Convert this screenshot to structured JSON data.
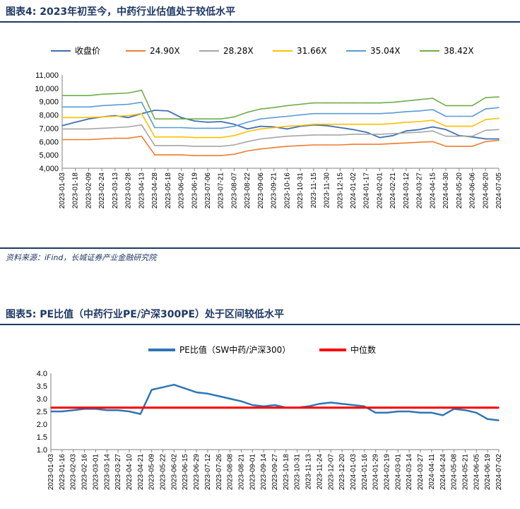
{
  "figure1": {
    "title": "图表4:  2023年初至今，中药行业估值处于较低水平",
    "source": "资料来源：iFind，长城证券产业金融研究院",
    "chart_data": {
      "type": "line",
      "ylim": [
        4000,
        11000
      ],
      "yticks": [
        "4,000",
        "5,000",
        "6,000",
        "7,000",
        "8,000",
        "9,000",
        "10,000",
        "11,000"
      ],
      "x": [
        "2023-01-03",
        "2023-01-18",
        "2023-02-09",
        "2023-02-24",
        "2023-03-13",
        "2023-03-28",
        "2023-04-13",
        "2023-04-28",
        "2023-05-18",
        "2023-06-02",
        "2023-06-19",
        "2023-07-06",
        "2023-07-21",
        "2023-08-07",
        "2023-08-22",
        "2023-09-06",
        "2023-09-21",
        "2023-10-16",
        "2023-10-31",
        "2023-11-15",
        "2023-11-30",
        "2023-12-15",
        "2024-01-02",
        "2024-01-17",
        "2024-02-01",
        "2024-02-21",
        "2024-03-12",
        "2024-03-27",
        "2024-04-15",
        "2024-04-30",
        "2024-05-20",
        "2024-06-06",
        "2024-06-20",
        "2024-07-05"
      ],
      "series": [
        {
          "name": "收盘价",
          "color": "#3e6fb5",
          "values": [
            7200,
            7450,
            7700,
            7850,
            7950,
            7800,
            8100,
            8350,
            8300,
            7800,
            7550,
            7450,
            7500,
            7300,
            6950,
            7150,
            7100,
            6950,
            7150,
            7250,
            7200,
            7050,
            6900,
            6700,
            6300,
            6450,
            6800,
            6900,
            7100,
            6900,
            6450,
            6350,
            6200,
            6200
          ]
        },
        {
          "name": "24.90X",
          "color": "#ed7d31",
          "values": [
            6150,
            6150,
            6150,
            6200,
            6250,
            6250,
            6400,
            5000,
            5000,
            5000,
            4950,
            4950,
            4950,
            5050,
            5300,
            5450,
            5550,
            5650,
            5700,
            5750,
            5750,
            5750,
            5800,
            5800,
            5800,
            5850,
            5900,
            5950,
            6000,
            5650,
            5650,
            5650,
            6000,
            6100
          ]
        },
        {
          "name": "28.28X",
          "color": "#a5a5a5",
          "values": [
            6950,
            6950,
            6950,
            7000,
            7050,
            7100,
            7250,
            5700,
            5700,
            5700,
            5650,
            5650,
            5650,
            5750,
            6000,
            6200,
            6300,
            6400,
            6450,
            6500,
            6500,
            6500,
            6550,
            6550,
            6550,
            6600,
            6650,
            6700,
            6800,
            6400,
            6400,
            6400,
            6850,
            6900
          ]
        },
        {
          "name": "31.66X",
          "color": "#ffc000",
          "values": [
            7800,
            7800,
            7800,
            7850,
            7900,
            7950,
            8100,
            6350,
            6350,
            6350,
            6300,
            6300,
            6300,
            6450,
            6750,
            6950,
            7050,
            7150,
            7200,
            7300,
            7300,
            7300,
            7300,
            7300,
            7300,
            7350,
            7450,
            7500,
            7600,
            7150,
            7150,
            7150,
            7650,
            7750
          ]
        },
        {
          "name": "35.04X",
          "color": "#5b9bd5",
          "values": [
            8600,
            8600,
            8600,
            8700,
            8750,
            8800,
            8950,
            7050,
            7050,
            7050,
            7000,
            7000,
            7000,
            7150,
            7450,
            7700,
            7800,
            7900,
            8000,
            8100,
            8100,
            8100,
            8100,
            8100,
            8100,
            8150,
            8250,
            8300,
            8400,
            7900,
            7900,
            7900,
            8450,
            8550
          ]
        },
        {
          "name": "38.42X",
          "color": "#70ad47",
          "values": [
            9450,
            9450,
            9450,
            9550,
            9600,
            9650,
            9850,
            7700,
            7700,
            7700,
            7700,
            7700,
            7700,
            7850,
            8200,
            8450,
            8550,
            8700,
            8800,
            8900,
            8900,
            8900,
            8900,
            8900,
            8900,
            8950,
            9050,
            9150,
            9250,
            8700,
            8700,
            8700,
            9300,
            9350
          ]
        }
      ]
    }
  },
  "figure2": {
    "title": "图表5:  PE比值（中药行业PE/沪深300PE）处于区间较低水平",
    "chart_data": {
      "type": "line",
      "ylim": [
        1.0,
        4.0
      ],
      "yticks": [
        "1.0",
        "1.5",
        "2.0",
        "2.5",
        "3.0",
        "3.5",
        "4.0"
      ],
      "x": [
        "2023-01-03",
        "2023-01-16",
        "2023-02-03",
        "2023-02-16",
        "2023-03-01",
        "2023-03-14",
        "2023-03-27",
        "2023-04-10",
        "2023-04-21",
        "2023-05-09",
        "2023-05-22",
        "2023-06-02",
        "2023-06-15",
        "2023-06-29",
        "2023-07-12",
        "2023-07-26",
        "2023-08-08",
        "2023-08-21",
        "2023-09-01",
        "2023-09-14",
        "2023-09-27",
        "2023-10-18",
        "2023-10-31",
        "2023-11-13",
        "2023-11-24",
        "2023-12-07",
        "2023-12-20",
        "2024-01-03",
        "2024-01-16",
        "2024-01-29",
        "2024-02-19",
        "2024-03-01",
        "2024-03-14",
        "2024-03-27",
        "2024-04-11",
        "2024-04-24",
        "2024-05-08",
        "2024-05-21",
        "2024-06-05",
        "2024-06-19",
        "2024-07-02"
      ],
      "series": [
        {
          "name": "PE比值（SW中药/沪深300）",
          "color": "#2e75b6",
          "values": [
            2.5,
            2.5,
            2.55,
            2.6,
            2.6,
            2.55,
            2.55,
            2.5,
            2.4,
            3.35,
            3.45,
            3.55,
            3.4,
            3.25,
            3.2,
            3.1,
            3.0,
            2.9,
            2.75,
            2.7,
            2.75,
            2.65,
            2.65,
            2.7,
            2.8,
            2.85,
            2.8,
            2.75,
            2.7,
            2.45,
            2.45,
            2.5,
            2.5,
            2.45,
            2.45,
            2.35,
            2.6,
            2.55,
            2.45,
            2.2,
            2.15
          ]
        },
        {
          "name": "中位数",
          "color": "#ff0000",
          "values": [
            2.65,
            2.65,
            2.65,
            2.65,
            2.65,
            2.65,
            2.65,
            2.65,
            2.65,
            2.65,
            2.65,
            2.65,
            2.65,
            2.65,
            2.65,
            2.65,
            2.65,
            2.65,
            2.65,
            2.65,
            2.65,
            2.65,
            2.65,
            2.65,
            2.65,
            2.65,
            2.65,
            2.65,
            2.65,
            2.65,
            2.65,
            2.65,
            2.65,
            2.65,
            2.65,
            2.65,
            2.65,
            2.65,
            2.65,
            2.65,
            2.65
          ]
        }
      ]
    }
  }
}
